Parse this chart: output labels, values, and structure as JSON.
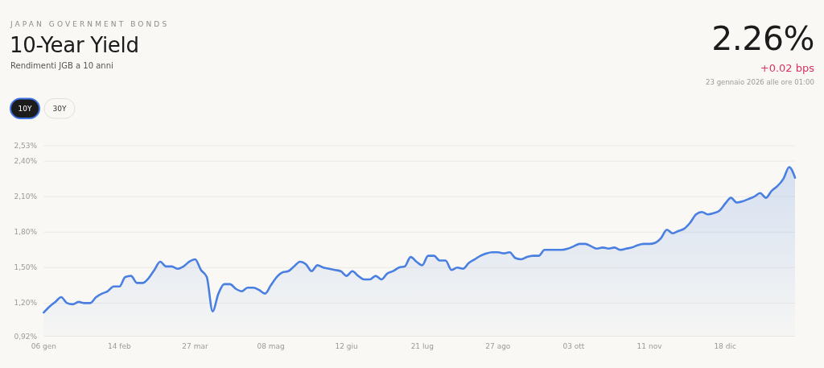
{
  "chart_data": {
    "type": "area",
    "title": "10-Year Yield",
    "subtitle": "Rendimenti JGB a 10 anni",
    "annotations": [
      "JAPAN GOVERNMENT BONDS",
      "2.26%",
      "+0.02 bps",
      "23 gennaio 2026 alle ore 01:00",
      "10Y",
      "30Y"
    ],
    "categories": [
      "06 gen",
      null,
      null,
      null,
      null,
      null,
      null,
      null,
      null,
      null,
      null,
      null,
      null,
      "14 feb",
      null,
      null,
      null,
      null,
      null,
      null,
      null,
      null,
      null,
      null,
      null,
      null,
      "27 mar",
      null,
      null,
      null,
      null,
      null,
      null,
      null,
      null,
      null,
      null,
      null,
      null,
      "08 mag",
      null,
      null,
      null,
      null,
      null,
      null,
      null,
      null,
      null,
      null,
      null,
      null,
      "12 giu",
      null,
      null,
      null,
      null,
      null,
      null,
      null,
      null,
      null,
      null,
      null,
      null,
      "21 lug",
      null,
      null,
      null,
      null,
      null,
      null,
      null,
      null,
      null,
      null,
      null,
      null,
      "27 ago",
      null,
      null,
      null,
      null,
      null,
      null,
      null,
      null,
      null,
      null,
      null,
      null,
      "03 ott",
      null,
      null,
      null,
      null,
      null,
      null,
      null,
      null,
      null,
      null,
      null,
      null,
      "11 nov",
      null,
      null,
      null,
      null,
      null,
      null,
      null,
      null,
      null,
      null,
      null,
      null,
      "18 dic",
      null,
      null,
      null,
      null,
      null,
      null,
      null,
      null,
      null,
      null,
      null,
      null
    ],
    "series": [
      {
        "color": "#4a7fe2",
        "values": [
          1.12,
          1.17,
          1.21,
          1.25,
          1.2,
          1.19,
          1.21,
          1.2,
          1.2,
          1.25,
          1.28,
          1.3,
          1.34,
          1.34,
          1.42,
          1.43,
          1.37,
          1.37,
          1.41,
          1.48,
          1.55,
          1.51,
          1.51,
          1.49,
          1.51,
          1.55,
          1.57,
          1.48,
          1.42,
          1.13,
          1.28,
          1.36,
          1.36,
          1.32,
          1.3,
          1.33,
          1.33,
          1.31,
          1.28,
          1.35,
          1.42,
          1.46,
          1.47,
          1.51,
          1.55,
          1.53,
          1.47,
          1.52,
          1.5,
          1.49,
          1.48,
          1.47,
          1.43,
          1.47,
          1.43,
          1.4,
          1.4,
          1.43,
          1.4,
          1.45,
          1.47,
          1.5,
          1.51,
          1.59,
          1.55,
          1.52,
          1.6,
          1.6,
          1.56,
          1.56,
          1.48,
          1.5,
          1.49,
          1.54,
          1.57,
          1.6,
          1.62,
          1.63,
          1.63,
          1.62,
          1.63,
          1.58,
          1.57,
          1.59,
          1.6,
          1.6,
          1.65,
          1.65,
          1.65,
          1.65,
          1.66,
          1.68,
          1.7,
          1.7,
          1.68,
          1.66,
          1.67,
          1.66,
          1.67,
          1.65,
          1.66,
          1.67,
          1.69,
          1.7,
          1.7,
          1.71,
          1.75,
          1.82,
          1.79,
          1.81,
          1.83,
          1.88,
          1.95,
          1.97,
          1.95,
          1.96,
          1.98,
          2.04,
          2.09,
          2.05,
          2.06,
          2.08,
          2.1,
          2.13,
          2.09,
          2.15,
          2.19,
          2.25,
          2.35,
          2.26
        ]
      }
    ],
    "ylim": [
      0.92,
      2.53
    ],
    "yticks": [
      {
        "value": 0.92,
        "label": "0,92%"
      },
      {
        "value": 1.2,
        "label": "1,20%"
      },
      {
        "value": 1.5,
        "label": "1,50%"
      },
      {
        "value": 1.8,
        "label": "1,80%"
      },
      {
        "value": 2.1,
        "label": "2,10%"
      },
      {
        "value": 2.4,
        "label": "2,40%"
      },
      {
        "value": 2.53,
        "label": "2,53%"
      }
    ],
    "grid": "y"
  }
}
